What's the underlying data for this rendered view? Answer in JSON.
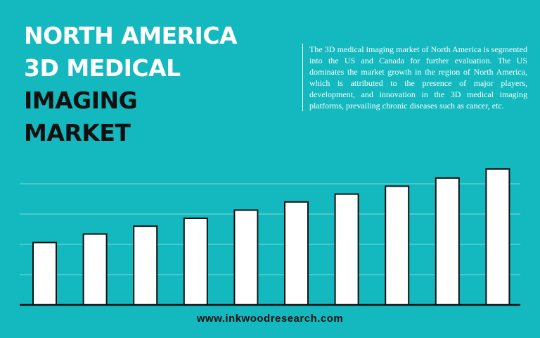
{
  "title": {
    "lines": [
      "NORTH AMERICA",
      "3D MEDICAL",
      "IMAGING",
      "MARKET"
    ]
  },
  "description": "The 3D medical imaging market of North America is segmented into the US and Canada for further evaluation. The US dominates the market growth in the region of North America, which is attributed to the presence of major players, development, and innovation in the 3D medical imaging platforms, prevailing chronic diseases such as cancer, etc.",
  "website": "www.inkwoodresearch.com",
  "colors": {
    "background": "#13b9be",
    "bar_fill": "#ffffff",
    "bar_stroke": "#111111",
    "gridline": "#7fd9dc",
    "axis": "#111111"
  },
  "chart_data": {
    "type": "bar",
    "categories": [
      "",
      "",
      "",
      "",
      "",
      "",
      "",
      "",
      "",
      ""
    ],
    "values": [
      2.06,
      2.34,
      2.6,
      2.86,
      3.13,
      3.4,
      3.66,
      3.92,
      4.19,
      4.49
    ],
    "title": "",
    "xlabel": "",
    "ylabel": "",
    "ylim": [
      0,
      5
    ],
    "grid": true
  }
}
